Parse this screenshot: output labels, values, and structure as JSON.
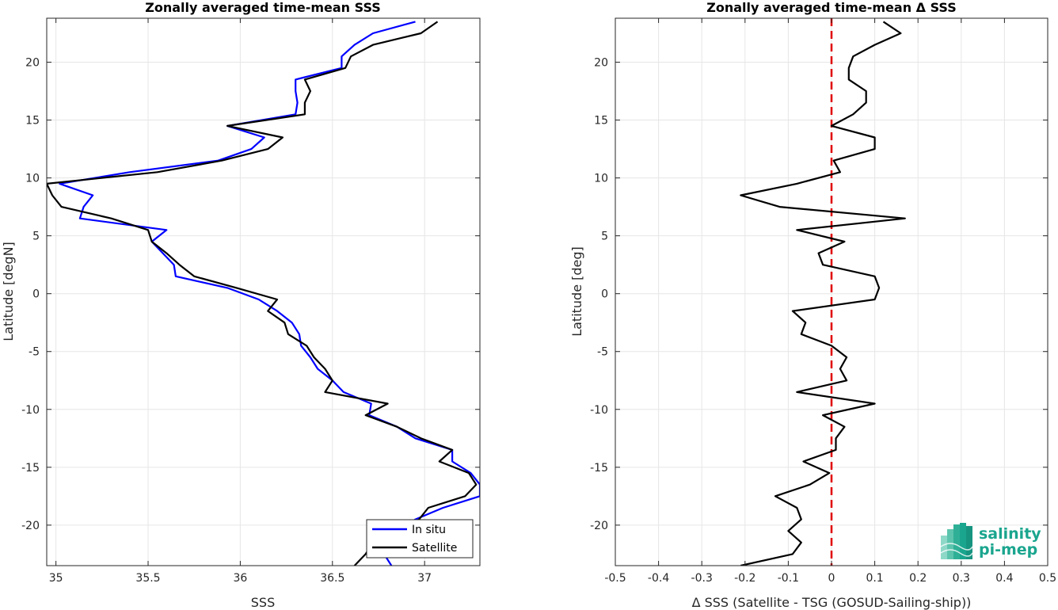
{
  "chart_data": [
    {
      "type": "line",
      "title": "Zonally averaged time-mean SSS",
      "xlabel": "SSS",
      "ylabel": "Latitude [degN]",
      "xlim": [
        34.95,
        37.3
      ],
      "ylim": [
        -23.5,
        23.8
      ],
      "xticks": [
        35,
        35.5,
        36,
        36.5,
        37
      ],
      "xtick_labels": [
        "35",
        "35.5",
        "36",
        "36.5",
        "37"
      ],
      "yticks": [
        -20,
        -15,
        -10,
        -5,
        0,
        5,
        10,
        15,
        20
      ],
      "ytick_labels": [
        "-20",
        "-15",
        "-10",
        "-5",
        "0",
        "5",
        "10",
        "15",
        "20"
      ],
      "grid": true,
      "legend_position": "bottom-right",
      "series": [
        {
          "name": "In situ",
          "color": "#0000ff",
          "points": [
            [
              36.95,
              23.5
            ],
            [
              36.72,
              22.5
            ],
            [
              36.62,
              21.5
            ],
            [
              36.55,
              20.5
            ],
            [
              36.55,
              19.5
            ],
            [
              36.3,
              18.5
            ],
            [
              36.3,
              17.5
            ],
            [
              36.31,
              16.5
            ],
            [
              36.3,
              15.5
            ],
            [
              35.93,
              14.5
            ],
            [
              36.13,
              13.5
            ],
            [
              36.06,
              12.5
            ],
            [
              35.88,
              11.5
            ],
            [
              35.4,
              10.5
            ],
            [
              35.02,
              9.5
            ],
            [
              35.2,
              8.5
            ],
            [
              35.15,
              7.5
            ],
            [
              35.13,
              6.5
            ],
            [
              35.6,
              5.5
            ],
            [
              35.52,
              4.5
            ],
            [
              35.58,
              3.5
            ],
            [
              35.64,
              2.5
            ],
            [
              35.65,
              1.5
            ],
            [
              35.93,
              0.5
            ],
            [
              36.1,
              -0.5
            ],
            [
              36.2,
              -1.5
            ],
            [
              36.28,
              -2.5
            ],
            [
              36.32,
              -3.5
            ],
            [
              36.33,
              -4.5
            ],
            [
              36.38,
              -5.5
            ],
            [
              36.42,
              -6.5
            ],
            [
              36.5,
              -7.5
            ],
            [
              36.56,
              -8.5
            ],
            [
              36.71,
              -9.5
            ],
            [
              36.7,
              -10.5
            ],
            [
              36.85,
              -11.5
            ],
            [
              36.95,
              -12.5
            ],
            [
              37.15,
              -13.5
            ],
            [
              37.15,
              -14.5
            ],
            [
              37.25,
              -15.5
            ],
            [
              37.3,
              -16.5
            ],
            [
              37.3,
              -17.5
            ],
            [
              37.1,
              -18.5
            ],
            [
              36.95,
              -19.5
            ],
            [
              36.85,
              -20.5
            ],
            [
              36.77,
              -21.5
            ],
            [
              36.78,
              -22.5
            ],
            [
              36.82,
              -23.5
            ]
          ]
        },
        {
          "name": "Satellite",
          "color": "#000000",
          "points": [
            [
              37.07,
              23.5
            ],
            [
              36.98,
              22.5
            ],
            [
              36.72,
              21.5
            ],
            [
              36.6,
              20.5
            ],
            [
              36.57,
              19.5
            ],
            [
              36.35,
              18.5
            ],
            [
              36.38,
              17.5
            ],
            [
              36.35,
              16.5
            ],
            [
              36.35,
              15.5
            ],
            [
              35.93,
              14.5
            ],
            [
              36.23,
              13.5
            ],
            [
              36.15,
              12.5
            ],
            [
              35.9,
              11.5
            ],
            [
              35.55,
              10.5
            ],
            [
              34.95,
              9.5
            ],
            [
              34.98,
              8.5
            ],
            [
              35.03,
              7.5
            ],
            [
              35.3,
              6.5
            ],
            [
              35.5,
              5.5
            ],
            [
              35.52,
              4.5
            ],
            [
              35.6,
              3.5
            ],
            [
              35.67,
              2.5
            ],
            [
              35.75,
              1.5
            ],
            [
              35.98,
              0.5
            ],
            [
              36.2,
              -0.5
            ],
            [
              36.15,
              -1.5
            ],
            [
              36.24,
              -2.5
            ],
            [
              36.26,
              -3.5
            ],
            [
              36.36,
              -4.5
            ],
            [
              36.4,
              -5.5
            ],
            [
              36.46,
              -6.5
            ],
            [
              36.5,
              -7.5
            ],
            [
              36.46,
              -8.5
            ],
            [
              36.8,
              -9.5
            ],
            [
              36.68,
              -10.5
            ],
            [
              36.85,
              -11.5
            ],
            [
              36.98,
              -12.5
            ],
            [
              37.15,
              -13.5
            ],
            [
              37.08,
              -14.5
            ],
            [
              37.24,
              -15.5
            ],
            [
              37.28,
              -16.5
            ],
            [
              37.22,
              -17.5
            ],
            [
              37.02,
              -18.5
            ],
            [
              36.97,
              -19.5
            ],
            [
              36.88,
              -20.5
            ],
            [
              36.72,
              -21.5
            ],
            [
              36.68,
              -22.5
            ],
            [
              36.62,
              -23.5
            ]
          ]
        }
      ]
    },
    {
      "type": "line",
      "title": "Zonally averaged time-mean Δ SSS",
      "xlabel": "Δ SSS (Satellite - TSG (GOSUD-Sailing-ship))",
      "ylabel": "Latitude [deg]",
      "xlim": [
        -0.5,
        0.5
      ],
      "ylim": [
        -23.5,
        23.8
      ],
      "xticks": [
        -0.5,
        -0.4,
        -0.3,
        -0.2,
        -0.1,
        0,
        0.1,
        0.2,
        0.3,
        0.4,
        0.5
      ],
      "xtick_labels": [
        "-0.5",
        "-0.4",
        "-0.3",
        "-0.2",
        "-0.1",
        "0",
        "0.1",
        "0.2",
        "0.3",
        "0.4",
        "0.5"
      ],
      "yticks": [
        -20,
        -15,
        -10,
        -5,
        0,
        5,
        10,
        15,
        20
      ],
      "ytick_labels": [
        "-20",
        "-15",
        "-10",
        "-5",
        "0",
        "5",
        "10",
        "15",
        "20"
      ],
      "grid": true,
      "reference_line": {
        "x": 0,
        "color": "#e00000",
        "style": "dashed"
      },
      "series": [
        {
          "color": "#000000",
          "points": [
            [
              0.12,
              23.5
            ],
            [
              0.16,
              22.5
            ],
            [
              0.1,
              21.5
            ],
            [
              0.05,
              20.5
            ],
            [
              0.04,
              19.5
            ],
            [
              0.04,
              18.5
            ],
            [
              0.08,
              17.5
            ],
            [
              0.08,
              16.5
            ],
            [
              0.05,
              15.5
            ],
            [
              0.0,
              14.5
            ],
            [
              0.1,
              13.5
            ],
            [
              0.1,
              12.5
            ],
            [
              0.005,
              11.5
            ],
            [
              0.02,
              10.5
            ],
            [
              -0.08,
              9.5
            ],
            [
              -0.21,
              8.5
            ],
            [
              -0.12,
              7.5
            ],
            [
              0.17,
              6.5
            ],
            [
              -0.08,
              5.5
            ],
            [
              0.03,
              4.5
            ],
            [
              -0.03,
              3.5
            ],
            [
              -0.02,
              2.5
            ],
            [
              0.1,
              1.5
            ],
            [
              0.11,
              0.5
            ],
            [
              0.1,
              -0.5
            ],
            [
              -0.09,
              -1.5
            ],
            [
              -0.06,
              -2.5
            ],
            [
              -0.07,
              -3.5
            ],
            [
              0.0,
              -4.5
            ],
            [
              0.035,
              -5.5
            ],
            [
              0.02,
              -6.5
            ],
            [
              0.035,
              -7.5
            ],
            [
              -0.08,
              -8.5
            ],
            [
              0.1,
              -9.5
            ],
            [
              -0.02,
              -10.5
            ],
            [
              0.03,
              -11.5
            ],
            [
              0.01,
              -12.5
            ],
            [
              0.01,
              -13.5
            ],
            [
              -0.065,
              -14.5
            ],
            [
              -0.005,
              -15.5
            ],
            [
              -0.05,
              -16.5
            ],
            [
              -0.13,
              -17.5
            ],
            [
              -0.08,
              -18.5
            ],
            [
              -0.07,
              -19.5
            ],
            [
              -0.1,
              -20.5
            ],
            [
              -0.07,
              -21.5
            ],
            [
              -0.09,
              -22.5
            ],
            [
              -0.21,
              -23.5
            ]
          ]
        }
      ]
    }
  ],
  "legend": {
    "entries": [
      {
        "label": "In situ",
        "color": "#0000ff"
      },
      {
        "label": "Satellite",
        "color": "#000000"
      }
    ]
  },
  "logo": {
    "text_line1": "salinity",
    "text_line2": "pi-mep",
    "color": "#1aa58e"
  }
}
